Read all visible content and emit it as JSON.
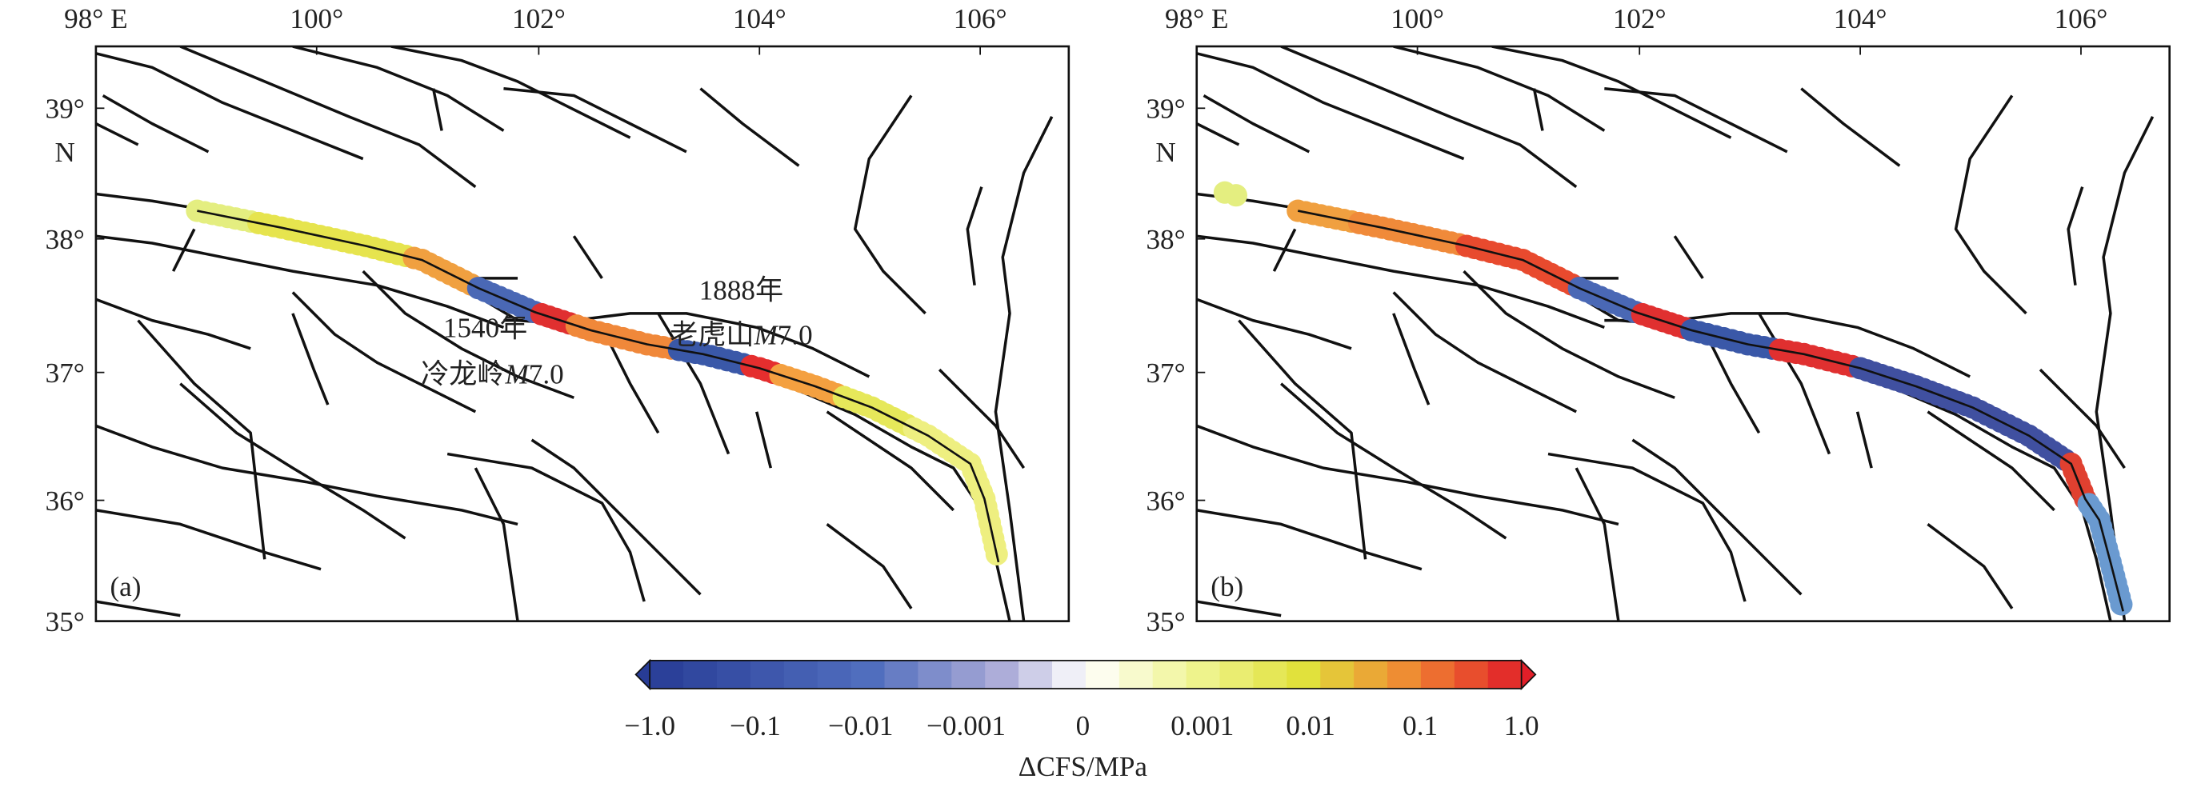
{
  "panels": [
    {
      "label": "(a)",
      "x_tick_labels": [
        "98° E",
        "100°",
        "102°",
        "104°",
        "106°"
      ],
      "y_tick_labels": [
        "39°",
        "38°",
        "37°",
        "36°",
        "35°"
      ],
      "y_unit": "N",
      "annotations": [
        {
          "year": "1888年",
          "place": "老虎山",
          "mag_symbol": "M",
          "mag_value": "7.0"
        },
        {
          "year": "1540年",
          "place": "冷龙岭",
          "mag_symbol": "M",
          "mag_value": "7.0"
        }
      ]
    },
    {
      "label": "(b)",
      "x_tick_labels": [
        "98° E",
        "100°",
        "102°",
        "104°",
        "106°"
      ],
      "y_tick_labels": [
        "39°",
        "38°",
        "37°",
        "36°",
        "35°"
      ],
      "y_unit": "N"
    }
  ],
  "colorbar": {
    "tick_labels": [
      "−1.0",
      "−0.1",
      "−0.01",
      "−0.001",
      "0",
      "0.001",
      "0.01",
      "0.1",
      "1.0"
    ],
    "label": "ΔCFS/MPa"
  }
}
